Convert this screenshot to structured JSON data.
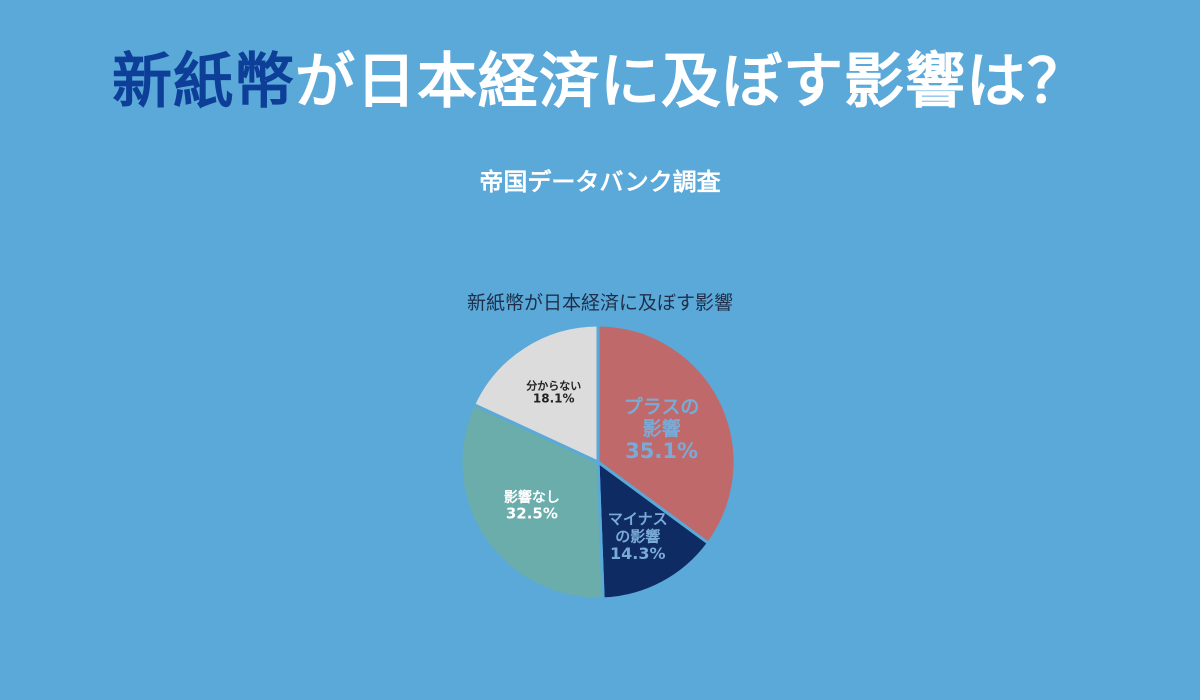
{
  "headline": {
    "accent": "新紙幣",
    "rest": "が日本経済に及ぼす影響は？"
  },
  "subtitle": "帝国データバンク調査",
  "colors": {
    "background": "#5aa9d9",
    "headline_accent": "#0d3f99",
    "headline_text": "#ffffff"
  },
  "chart_data": {
    "type": "pie",
    "title": "新紙幣が日本経済に及ぼす影響",
    "start": "12 o'clock",
    "direction": "clockwise",
    "slices": [
      {
        "label_lines": [
          "プラスの",
          "影響"
        ],
        "value": 35.1,
        "value_label": "35.1%",
        "color": "#c0696a",
        "label_color": "#7aaad6"
      },
      {
        "label_lines": [
          "マイナス",
          "の影響"
        ],
        "value": 14.3,
        "value_label": "14.3%",
        "color": "#0e2b63",
        "label_color": "#7aaad6"
      },
      {
        "label_lines": [
          "影響なし"
        ],
        "value": 32.5,
        "value_label": "32.5%",
        "color": "#6aadab",
        "label_color": "#ffffff"
      },
      {
        "label_lines": [
          "分からない"
        ],
        "value": 18.1,
        "value_label": "18.1%",
        "color": "#dcdcdc",
        "label_color": "#222222"
      }
    ]
  }
}
